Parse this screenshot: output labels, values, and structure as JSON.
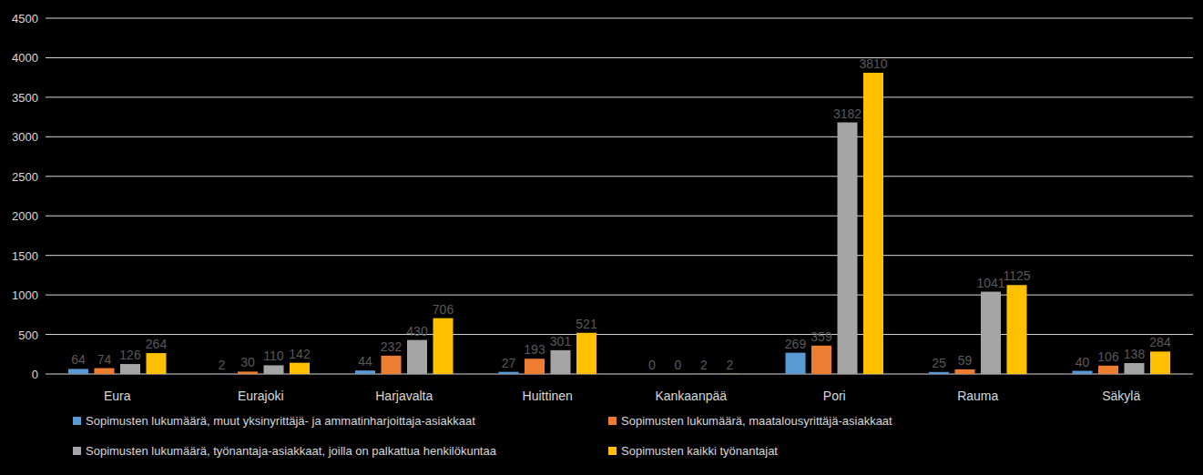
{
  "chart_data": {
    "type": "bar",
    "categories": [
      "Eura",
      "Eurajoki",
      "Harjavalta",
      "Huittinen",
      "Kankaanpää",
      "Pori",
      "Rauma",
      "Säkylä"
    ],
    "series": [
      {
        "name": "Sopimusten lukumäärä, muut yksinyrittäjä- ja ammatinharjoittaja-asiakkaat",
        "color": "#5B9BD5",
        "values": [
          64,
          2,
          44,
          27,
          0,
          269,
          25,
          40
        ]
      },
      {
        "name": "Sopimusten lukumäärä, maatalousyrittäjä-asiakkaat",
        "color": "#ED7D31",
        "values": [
          74,
          30,
          232,
          193,
          0,
          359,
          59,
          106
        ]
      },
      {
        "name": "Sopimusten lukumäärä, työnantaja-asiakkaat, joilla on palkattua henkilökuntaa",
        "color": "#A5A5A5",
        "values": [
          126,
          110,
          430,
          301,
          2,
          3182,
          1041,
          138
        ]
      },
      {
        "name": "Sopimusten kaikki työnantajat",
        "color": "#FFC000",
        "values": [
          264,
          142,
          706,
          521,
          2,
          3810,
          1125,
          284
        ]
      }
    ],
    "ylim": [
      0,
      4500
    ],
    "yticks": [
      0,
      500,
      1000,
      1500,
      2000,
      2500,
      3000,
      3500,
      4000,
      4500
    ],
    "grid": true,
    "data_labels": true,
    "legend": "bottom"
  }
}
